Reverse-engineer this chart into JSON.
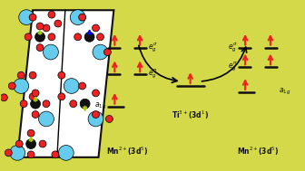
{
  "bg_color": "#d4d94a",
  "arrow_red": "#ee0000",
  "arrow_black": "#111111",
  "atom_cyan": "#66ccee",
  "atom_black": "#111111",
  "atom_red": "#ee2222",
  "atom_yellow": "#ddcc00",
  "level_color": "#111111",
  "text_color": "#111111",
  "slab_face": "#ffffff",
  "slab_edge": "#111111"
}
